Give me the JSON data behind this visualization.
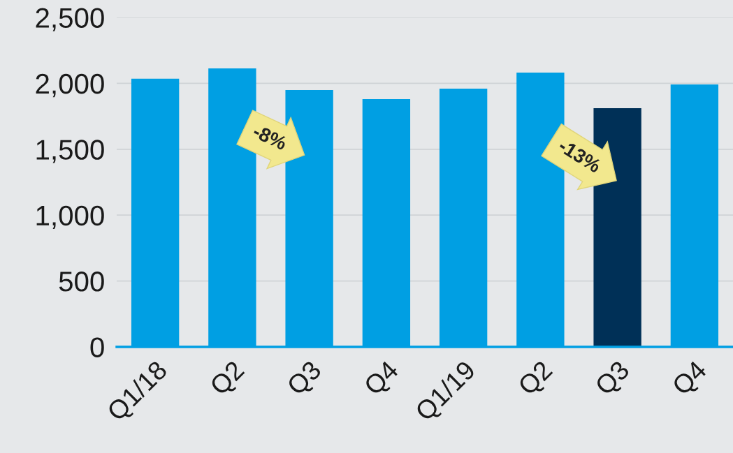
{
  "chart_data": {
    "type": "bar",
    "categories": [
      "Q1/18",
      "Q2",
      "Q3",
      "Q4",
      "Q1/19",
      "Q2",
      "Q3",
      "Q4"
    ],
    "values": [
      2035,
      2113,
      1949,
      1880,
      1960,
      2082,
      1811,
      1992
    ],
    "colors": [
      "#009fe3",
      "#009fe3",
      "#009fe3",
      "#009fe3",
      "#009fe3",
      "#009fe3",
      "#003057",
      "#009fe3"
    ],
    "ylim": [
      0,
      2500
    ],
    "yticks": [
      0,
      {
        "value": 500,
        "label": "500"
      },
      {
        "value": 1000,
        "label": "1,000"
      },
      {
        "value": 1500,
        "label": "1,500"
      },
      {
        "value": 2000,
        "label": "2,000"
      },
      {
        "value": 2500,
        "label": "2,500"
      }
    ],
    "grid": "y",
    "annotations": [
      "-8%",
      "-13%"
    ]
  }
}
